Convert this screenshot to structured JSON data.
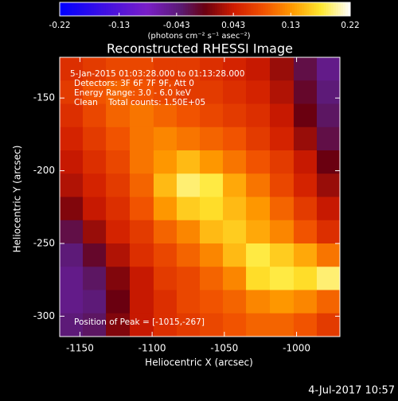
{
  "chart_data": {
    "type": "heatmap",
    "title": "Reconstructed RHESSI Image",
    "xlabel": "Heliocentric X (arcsec)",
    "ylabel": "Heliocentric Y (arcsec)",
    "colorbar_label": "(photons cm⁻² s⁻¹ asec⁻²)",
    "zlim": [
      -0.22,
      0.22
    ],
    "zticks": [
      -0.22,
      -0.13,
      -0.043,
      0.043,
      0.13,
      0.22
    ],
    "colormap": [
      [
        0,
        "#0000ff"
      ],
      [
        0.3,
        "#7a1ec8"
      ],
      [
        0.42,
        "#5a1a70"
      ],
      [
        0.5,
        "#6a0010"
      ],
      [
        0.6,
        "#d01c00"
      ],
      [
        0.7,
        "#f05000"
      ],
      [
        0.8,
        "#ff9a00"
      ],
      [
        0.9,
        "#ffe830"
      ],
      [
        1,
        "#ffffff"
      ]
    ],
    "xlim": [
      -1164,
      -970
    ],
    "ylim": [
      -314,
      -122
    ],
    "xticks": [
      -1150,
      -1100,
      -1050,
      -1000
    ],
    "yticks": [
      -300,
      -250,
      -200,
      -150
    ],
    "x": [
      -1156,
      -1140,
      -1124,
      -1107,
      -1091,
      -1075,
      -1059,
      -1043,
      -1027,
      -1010,
      -994,
      -978
    ],
    "y": [
      -130,
      -146,
      -162,
      -178,
      -194,
      -210,
      -226,
      -242,
      -258,
      -274,
      -290,
      -306
    ],
    "z": [
      [
        0.06,
        0.07,
        0.08,
        0.08,
        0.07,
        0.07,
        0.06,
        0.05,
        0.04,
        0.02,
        -0.02,
        -0.05
      ],
      [
        0.07,
        0.09,
        0.1,
        0.09,
        0.08,
        0.07,
        0.07,
        0.06,
        0.05,
        0.03,
        -0.01,
        -0.04
      ],
      [
        0.06,
        0.08,
        0.1,
        0.11,
        0.1,
        0.09,
        0.08,
        0.07,
        0.06,
        0.04,
        0.0,
        -0.03
      ],
      [
        0.05,
        0.07,
        0.09,
        0.11,
        0.12,
        0.11,
        0.1,
        0.09,
        0.07,
        0.05,
        0.02,
        -0.02
      ],
      [
        0.04,
        0.06,
        0.08,
        0.11,
        0.13,
        0.15,
        0.13,
        0.11,
        0.09,
        0.07,
        0.04,
        0.0
      ],
      [
        0.03,
        0.05,
        0.07,
        0.1,
        0.15,
        0.19,
        0.18,
        0.14,
        0.11,
        0.08,
        0.05,
        0.02
      ],
      [
        0.01,
        0.04,
        0.06,
        0.09,
        0.13,
        0.16,
        0.17,
        0.15,
        0.13,
        0.1,
        0.07,
        0.04
      ],
      [
        -0.02,
        0.02,
        0.05,
        0.07,
        0.1,
        0.12,
        0.15,
        0.16,
        0.14,
        0.12,
        0.09,
        0.06
      ],
      [
        -0.04,
        -0.01,
        0.03,
        0.06,
        0.08,
        0.1,
        0.12,
        0.15,
        0.18,
        0.16,
        0.14,
        0.11
      ],
      [
        -0.05,
        -0.03,
        0.01,
        0.04,
        0.07,
        0.08,
        0.1,
        0.12,
        0.17,
        0.18,
        0.17,
        0.19
      ],
      [
        -0.05,
        -0.04,
        0.0,
        0.04,
        0.06,
        0.08,
        0.09,
        0.1,
        0.12,
        0.13,
        0.12,
        0.1
      ],
      [
        -0.04,
        -0.03,
        0.01,
        0.04,
        0.06,
        0.07,
        0.08,
        0.09,
        0.1,
        0.1,
        0.09,
        0.07
      ]
    ],
    "annotations": [
      "5-Jan-2015 01:03:28.000 to 01:13:28.000",
      "Detectors: 3F 6F 7F 9F, Att 0",
      "Energy Range: 3.0 - 6.0 keV",
      "Clean    Total counts: 1.50E+05"
    ],
    "peak_label": "Position of Peak = [-1015,-267]",
    "timestamp": "4-Jul-2017 10:57"
  }
}
